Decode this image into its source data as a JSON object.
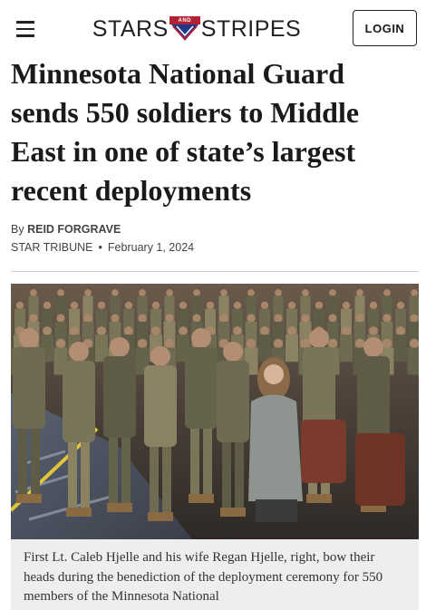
{
  "header": {
    "logo": [
      "STARS",
      "AND",
      "STRIPES"
    ],
    "login": "LOGIN"
  },
  "article": {
    "title": "Minnesota National Guard sends 550 soldiers to Middle East in one of state’s largest recent deployments",
    "byline_prefix": "By",
    "author": "REID FORGRAVE",
    "source": "STAR TRIBUNE",
    "date": "February 1, 2024",
    "caption": "First Lt. Caleb Hjelle and his wife Regan Hjelle, right, bow their heads during the benediction of the deployment ceremony for 550 members of the Minnesota National"
  }
}
